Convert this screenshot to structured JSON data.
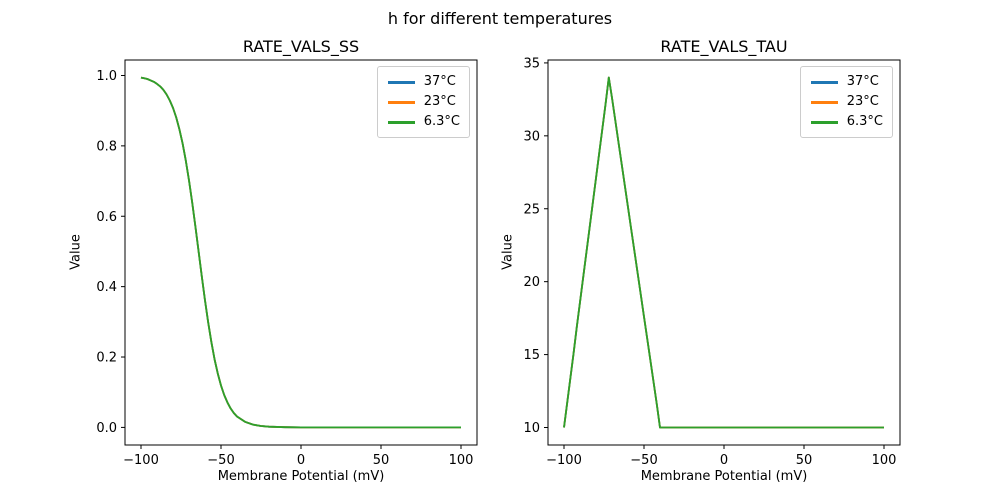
{
  "figure": {
    "suptitle": "h for different temperatures",
    "background": "#ffffff",
    "text_color": "#000000",
    "axes_color": "#000000"
  },
  "chart_data": [
    {
      "type": "line",
      "title": "RATE_VALS_SS",
      "xlabel": "Membrane Potential (mV)",
      "ylabel": "Value",
      "grid": false,
      "legend": {
        "location": "upper right"
      },
      "xlim": [
        -110,
        110
      ],
      "ylim": [
        -0.05,
        1.044
      ],
      "xticks": {
        "values": [
          -100,
          -50,
          0,
          50,
          100
        ],
        "labels": [
          "−100",
          "−50",
          "0",
          "50",
          "100"
        ]
      },
      "yticks": {
        "values": [
          0.0,
          0.2,
          0.4,
          0.6,
          0.8,
          1.0
        ],
        "labels": [
          "0.0",
          "0.2",
          "0.4",
          "0.6",
          "0.8",
          "1.0"
        ]
      },
      "note": "All three temperature curves overlap exactly; only the last-drawn series (6.3°C, green) is visible.",
      "x": [
        -100,
        -98,
        -96,
        -94,
        -92,
        -90,
        -88,
        -86,
        -84,
        -82,
        -80,
        -78,
        -76,
        -74,
        -72,
        -70,
        -68,
        -66,
        -64,
        -62,
        -60,
        -58,
        -56,
        -54,
        -52,
        -50,
        -48,
        -46,
        -44,
        -42,
        -40,
        -35,
        -30,
        -25,
        -20,
        -10,
        0,
        20,
        40,
        60,
        80,
        100
      ],
      "series": [
        {
          "name": "37°C",
          "color": "#1f77b4",
          "values": [
            0.994,
            0.992,
            0.99,
            0.986,
            0.982,
            0.976,
            0.969,
            0.959,
            0.946,
            0.929,
            0.908,
            0.881,
            0.847,
            0.807,
            0.758,
            0.702,
            0.639,
            0.571,
            0.5,
            0.429,
            0.361,
            0.298,
            0.242,
            0.193,
            0.153,
            0.119,
            0.092,
            0.071,
            0.054,
            0.041,
            0.031,
            0.016,
            0.008,
            0.004,
            0.002,
            0.0005,
            0.0001,
            0.0,
            0.0,
            0.0,
            0.0,
            0.0
          ]
        },
        {
          "name": "23°C",
          "color": "#ff7f0e",
          "values": [
            0.994,
            0.992,
            0.99,
            0.986,
            0.982,
            0.976,
            0.969,
            0.959,
            0.946,
            0.929,
            0.908,
            0.881,
            0.847,
            0.807,
            0.758,
            0.702,
            0.639,
            0.571,
            0.5,
            0.429,
            0.361,
            0.298,
            0.242,
            0.193,
            0.153,
            0.119,
            0.092,
            0.071,
            0.054,
            0.041,
            0.031,
            0.016,
            0.008,
            0.004,
            0.002,
            0.0005,
            0.0001,
            0.0,
            0.0,
            0.0,
            0.0,
            0.0
          ]
        },
        {
          "name": "6.3°C",
          "color": "#2ca02c",
          "values": [
            0.994,
            0.992,
            0.99,
            0.986,
            0.982,
            0.976,
            0.969,
            0.959,
            0.946,
            0.929,
            0.908,
            0.881,
            0.847,
            0.807,
            0.758,
            0.702,
            0.639,
            0.571,
            0.5,
            0.429,
            0.361,
            0.298,
            0.242,
            0.193,
            0.153,
            0.119,
            0.092,
            0.071,
            0.054,
            0.041,
            0.031,
            0.016,
            0.008,
            0.004,
            0.002,
            0.0005,
            0.0001,
            0.0,
            0.0,
            0.0,
            0.0,
            0.0
          ]
        }
      ]
    },
    {
      "type": "line",
      "title": "RATE_VALS_TAU",
      "xlabel": "Membrane Potential (mV)",
      "ylabel": "Value",
      "grid": false,
      "legend": {
        "location": "upper right"
      },
      "xlim": [
        -110,
        110
      ],
      "ylim": [
        8.8,
        35.2
      ],
      "xticks": {
        "values": [
          -100,
          -50,
          0,
          50,
          100
        ],
        "labels": [
          "−100",
          "−50",
          "0",
          "50",
          "100"
        ]
      },
      "yticks": {
        "values": [
          10,
          15,
          20,
          25,
          30,
          35
        ],
        "labels": [
          "10",
          "15",
          "20",
          "25",
          "30",
          "35"
        ]
      },
      "note": "All three temperature curves overlap exactly; only the last-drawn series (6.3°C, green) is visible. Peak ≈ 34 at −72 mV, baseline 10.",
      "x": [
        -100,
        -98,
        -96,
        -94,
        -92,
        -90,
        -88,
        -86,
        -84,
        -82,
        -80,
        -78,
        -76,
        -74,
        -72,
        -70,
        -68,
        -66,
        -64,
        -62,
        -60,
        -58,
        -56,
        -54,
        -52,
        -50,
        -48,
        -46,
        -44,
        -42,
        -40,
        -35,
        -30,
        -25,
        -20,
        -10,
        0,
        20,
        40,
        60,
        80,
        100
      ],
      "series": [
        {
          "name": "37°C",
          "color": "#1f77b4",
          "values": [
            10.0,
            11.7,
            13.4,
            15.1,
            16.9,
            18.6,
            20.3,
            22.0,
            23.7,
            25.4,
            27.1,
            28.8,
            30.5,
            32.2,
            34.0,
            32.6,
            31.1,
            29.6,
            28.1,
            26.6,
            25.1,
            23.6,
            22.1,
            20.6,
            19.1,
            17.6,
            16.1,
            14.6,
            13.1,
            11.6,
            10.0,
            10.0,
            10.0,
            10.0,
            10.0,
            10.0,
            10.0,
            10.0,
            10.0,
            10.0,
            10.0,
            10.0
          ]
        },
        {
          "name": "23°C",
          "color": "#ff7f0e",
          "values": [
            10.0,
            11.7,
            13.4,
            15.1,
            16.9,
            18.6,
            20.3,
            22.0,
            23.7,
            25.4,
            27.1,
            28.8,
            30.5,
            32.2,
            34.0,
            32.6,
            31.1,
            29.6,
            28.1,
            26.6,
            25.1,
            23.6,
            22.1,
            20.6,
            19.1,
            17.6,
            16.1,
            14.6,
            13.1,
            11.6,
            10.0,
            10.0,
            10.0,
            10.0,
            10.0,
            10.0,
            10.0,
            10.0,
            10.0,
            10.0,
            10.0,
            10.0
          ]
        },
        {
          "name": "6.3°C",
          "color": "#2ca02c",
          "values": [
            10.0,
            11.7,
            13.4,
            15.1,
            16.9,
            18.6,
            20.3,
            22.0,
            23.7,
            25.4,
            27.1,
            28.8,
            30.5,
            32.2,
            34.0,
            32.6,
            31.1,
            29.6,
            28.1,
            26.6,
            25.1,
            23.6,
            22.1,
            20.6,
            19.1,
            17.6,
            16.1,
            14.6,
            13.1,
            11.6,
            10.0,
            10.0,
            10.0,
            10.0,
            10.0,
            10.0,
            10.0,
            10.0,
            10.0,
            10.0,
            10.0,
            10.0
          ]
        }
      ]
    }
  ]
}
